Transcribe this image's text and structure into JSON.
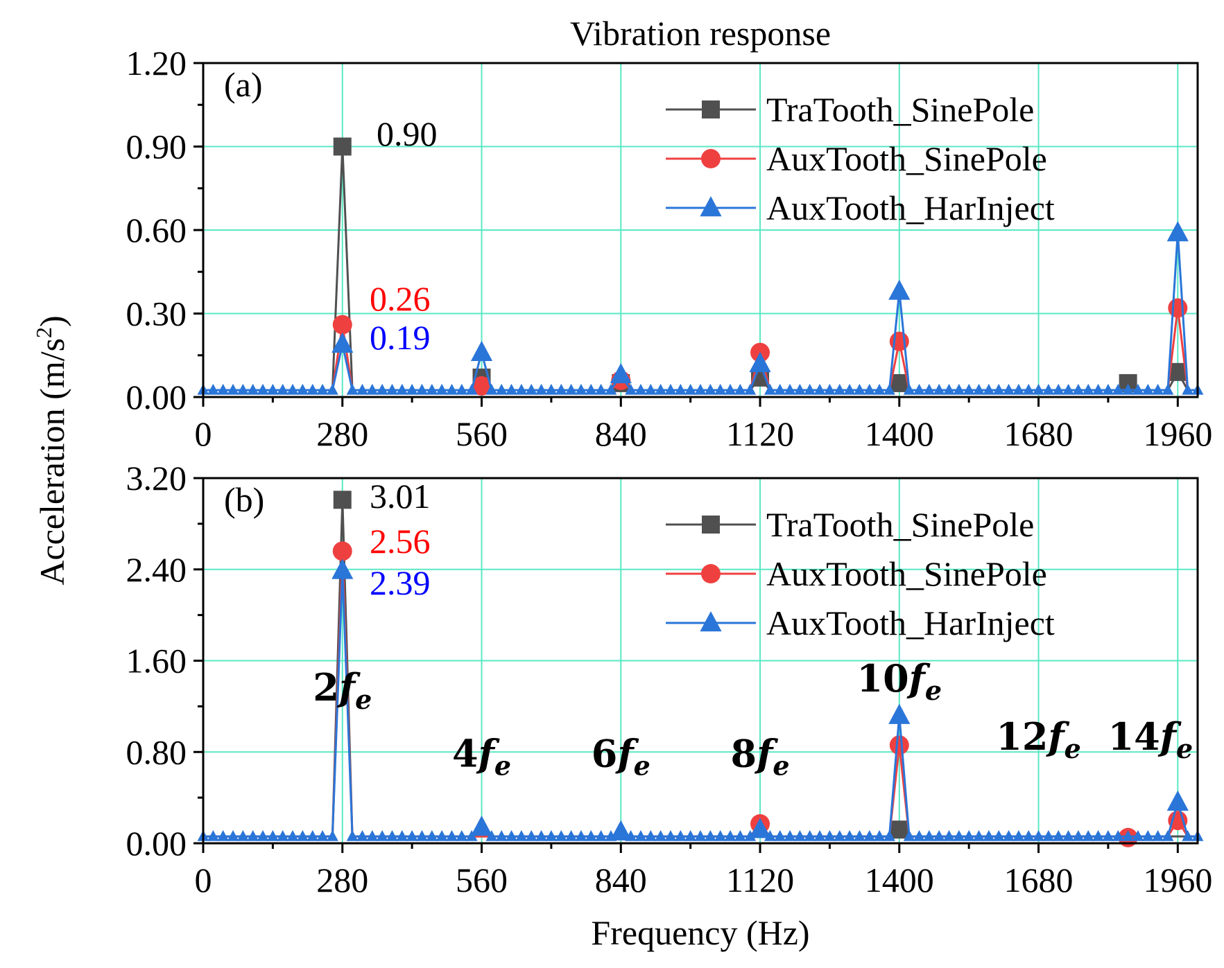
{
  "chart_data": {
    "type": "line",
    "title": "Vibration response",
    "xlabel": "Frequency (Hz)",
    "ylabel_main": "Acceleration (m/s",
    "ylabel_sup": "2",
    "ylabel_end": ")",
    "xlim": [
      0,
      2000
    ],
    "xticks": [
      0,
      280,
      560,
      840,
      1120,
      1400,
      1680,
      1960
    ],
    "xtick_labels": [
      "0",
      "280",
      "560",
      "840",
      "1120",
      "1400",
      "1680",
      "1960"
    ],
    "colors": {
      "TraTooth_SinePole": "#505050",
      "AuxTooth_SinePole": "#ef4040",
      "AuxTooth_HarInject": "#2a75d8",
      "grid": "#59e8c4"
    },
    "panels": [
      {
        "label": "(a)",
        "ylim": [
          0,
          1.2
        ],
        "yticks": [
          0,
          0.3,
          0.6,
          0.9,
          1.2
        ],
        "ytick_labels": [
          "0.00",
          "0.30",
          "0.60",
          "0.90",
          "1.20"
        ],
        "baseline": 0.025,
        "legend": [
          "TraTooth_SinePole",
          "AuxTooth_SinePole",
          "AuxTooth_HarInject"
        ],
        "series": [
          {
            "name": "TraTooth_SinePole",
            "marker": "square",
            "peaks": [
              [
                280,
                0.9
              ],
              [
                560,
                0.07
              ],
              [
                840,
                0.05
              ],
              [
                1120,
                0.07
              ],
              [
                1400,
                0.05
              ],
              [
                1860,
                0.05
              ],
              [
                1960,
                0.09
              ]
            ]
          },
          {
            "name": "AuxTooth_SinePole",
            "marker": "circle",
            "peaks": [
              [
                280,
                0.26
              ],
              [
                560,
                0.04
              ],
              [
                840,
                0.06
              ],
              [
                1120,
                0.16
              ],
              [
                1400,
                0.2
              ],
              [
                1960,
                0.32
              ]
            ]
          },
          {
            "name": "AuxTooth_HarInject",
            "marker": "triangle",
            "peaks": [
              [
                280,
                0.19
              ],
              [
                560,
                0.16
              ],
              [
                840,
                0.08
              ],
              [
                1120,
                0.12
              ],
              [
                1400,
                0.38
              ],
              [
                1960,
                0.59
              ]
            ]
          }
        ],
        "annotations": [
          {
            "text": "0.90",
            "color": "#000000",
            "x": 280,
            "y": 0.9
          },
          {
            "text": "0.26",
            "color": "#ff0000",
            "x": 280,
            "y": 0.26
          },
          {
            "text": "0.19",
            "color": "#0000ff",
            "x": 280,
            "y": 0.19
          }
        ]
      },
      {
        "label": "(b)",
        "ylim": [
          0,
          3.2
        ],
        "yticks": [
          0,
          0.8,
          1.6,
          2.4,
          3.2
        ],
        "ytick_labels": [
          "0.00",
          "0.80",
          "1.60",
          "2.40",
          "3.20"
        ],
        "baseline": 0.06,
        "legend": [
          "TraTooth_SinePole",
          "AuxTooth_SinePole",
          "AuxTooth_HarInject"
        ],
        "series": [
          {
            "name": "TraTooth_SinePole",
            "marker": "square",
            "peaks": [
              [
                280,
                3.01
              ],
              [
                1400,
                0.12
              ]
            ]
          },
          {
            "name": "AuxTooth_SinePole",
            "marker": "circle",
            "peaks": [
              [
                280,
                2.56
              ],
              [
                1120,
                0.17
              ],
              [
                1400,
                0.86
              ],
              [
                1860,
                0.05
              ],
              [
                1960,
                0.2
              ]
            ]
          },
          {
            "name": "AuxTooth_HarInject",
            "marker": "triangle",
            "peaks": [
              [
                280,
                2.39
              ],
              [
                560,
                0.14
              ],
              [
                840,
                0.1
              ],
              [
                1120,
                0.12
              ],
              [
                1400,
                1.12
              ],
              [
                1960,
                0.36
              ]
            ]
          }
        ],
        "annotations": [
          {
            "text": "3.01",
            "color": "#000000",
            "x": 280,
            "y": 3.01
          },
          {
            "text": "2.56",
            "color": "#ff0000",
            "x": 280,
            "y": 2.56
          },
          {
            "text": "2.39",
            "color": "#0000ff",
            "x": 280,
            "y": 2.39
          }
        ],
        "harmonics": [
          {
            "coef": "2",
            "x": 280,
            "y": 1.25
          },
          {
            "coef": "4",
            "x": 560,
            "y": 0.67
          },
          {
            "coef": "6",
            "x": 840,
            "y": 0.67
          },
          {
            "coef": "8",
            "x": 1120,
            "y": 0.67
          },
          {
            "coef": "10",
            "x": 1400,
            "y": 1.33
          },
          {
            "coef": "12",
            "x": 1680,
            "y": 0.82
          },
          {
            "coef": "14",
            "x": 1905,
            "y": 0.82
          }
        ],
        "harmonic_symbol": "f",
        "harmonic_subscript": "e"
      }
    ]
  }
}
